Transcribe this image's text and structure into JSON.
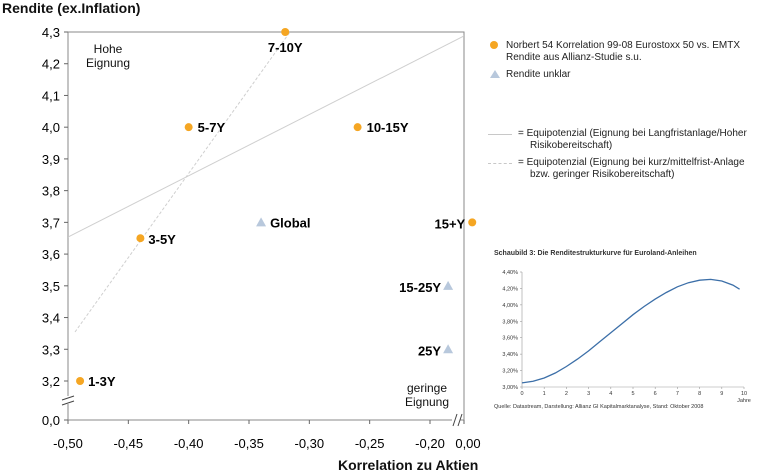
{
  "chart_data": {
    "type": "scatter",
    "ylabel": "Rendite (ex.Inflation)",
    "xlabel": "Korrelation zu Aktien",
    "xlim": [
      -0.5,
      0.0
    ],
    "ylim_upper": [
      3.2,
      4.3
    ],
    "y_break": true,
    "x_break": true,
    "x_ticks": [
      "-0,50",
      "-0,45",
      "-0,40",
      "-0,35",
      "-0,30",
      "-0,25",
      "-0,20",
      "0,00"
    ],
    "y_ticks": [
      "0,0",
      "3,2",
      "3,3",
      "3,4",
      "3,5",
      "3,6",
      "3,7",
      "3,8",
      "3,9",
      "4,0",
      "4,1",
      "4,2",
      "4,3"
    ],
    "grid": false,
    "legend_position": "right",
    "series": [
      {
        "name": "Norbert 54 Korrelation 99-08 Eurostoxx 50 vs. EMTX Rendite aus Allianz-Studie s.u.",
        "marker": "circle",
        "color": "#f5a623",
        "points": [
          {
            "label": "1-3Y",
            "x": -0.49,
            "y": 3.2
          },
          {
            "label": "3-5Y",
            "x": -0.44,
            "y": 3.65
          },
          {
            "label": "5-7Y",
            "x": -0.4,
            "y": 4.0
          },
          {
            "label": "7-10Y",
            "x": -0.32,
            "y": 4.3
          },
          {
            "label": "10-15Y",
            "x": -0.26,
            "y": 4.0
          },
          {
            "label": "15+Y",
            "x": -0.165,
            "y": 3.7
          }
        ]
      },
      {
        "name": "Rendite unklar",
        "marker": "triangle",
        "color": "#b8c8dc",
        "points": [
          {
            "label": "Global",
            "x": -0.34,
            "y": 3.7
          },
          {
            "label": "15-25Y",
            "x": -0.185,
            "y": 3.5
          },
          {
            "label": "25Y",
            "x": -0.185,
            "y": 3.3
          }
        ]
      }
    ],
    "lines": [
      {
        "name": "= Equipotenzial (Eignung bei Langfristanlage/Hoher Risikobereitschaft)",
        "style": "solid",
        "color": "#cccccc"
      },
      {
        "name": "= Equipotenzial (Eignung bei kurz/mittelfrist-Anlage bzw. geringer Risikobereitschaft)",
        "style": "dashed",
        "color": "#cccccc"
      }
    ],
    "annotations": [
      {
        "text": "Hohe Eignung",
        "position": "top-left"
      },
      {
        "text": "geringe Eignung",
        "position": "bottom-right"
      }
    ]
  },
  "legend": {
    "dot_line1": "Norbert 54 Korrelation 99-08 Eurostoxx 50 vs. EMTX",
    "dot_line2": "Rendite aus Allianz-Studie s.u.",
    "tri": "Rendite unklar",
    "solid_line1": "= Equipotenzial (Eignung bei Langfristanlage/Hoher",
    "solid_line2": "Risikobereitschaft)",
    "dashed_line1": "= Equipotenzial (Eignung bei kurz/mittelfrist-Anlage",
    "dashed_line2": "bzw. geringer Risikobereitschaft)"
  },
  "annotations": {
    "hohe_1": "Hohe",
    "hohe_2": "Eignung",
    "geringe_1": "geringe",
    "geringe_2": "Eignung"
  },
  "inset_chart": {
    "type": "line",
    "title": "Schaubild 3: Die Renditestrukturkurve für Euroland-Anleihen",
    "source": "Quelle: Datastream, Darstellung: Allianz GI Kapitalmarktanalyse, Stand: Oktober 2008",
    "xlabel": "Jahre",
    "x_ticks": [
      0,
      1,
      2,
      3,
      4,
      5,
      6,
      7,
      8,
      9,
      10
    ],
    "y_ticks": [
      "3,00%",
      "3,20%",
      "3,40%",
      "3,60%",
      "3,80%",
      "4,00%",
      "4,20%",
      "4,40%"
    ],
    "xlim": [
      0,
      10
    ],
    "ylim": [
      3.0,
      4.4
    ],
    "color": "#3c6fa8",
    "x": [
      0,
      0.5,
      1,
      1.5,
      2,
      2.5,
      3,
      3.5,
      4,
      4.5,
      5,
      5.5,
      6,
      6.5,
      7,
      7.5,
      8,
      8.5,
      9,
      9.5,
      9.8
    ],
    "y": [
      3.05,
      3.07,
      3.11,
      3.17,
      3.25,
      3.34,
      3.44,
      3.55,
      3.66,
      3.77,
      3.88,
      3.98,
      4.07,
      4.15,
      4.22,
      4.27,
      4.3,
      4.31,
      4.29,
      4.24,
      4.19
    ]
  }
}
